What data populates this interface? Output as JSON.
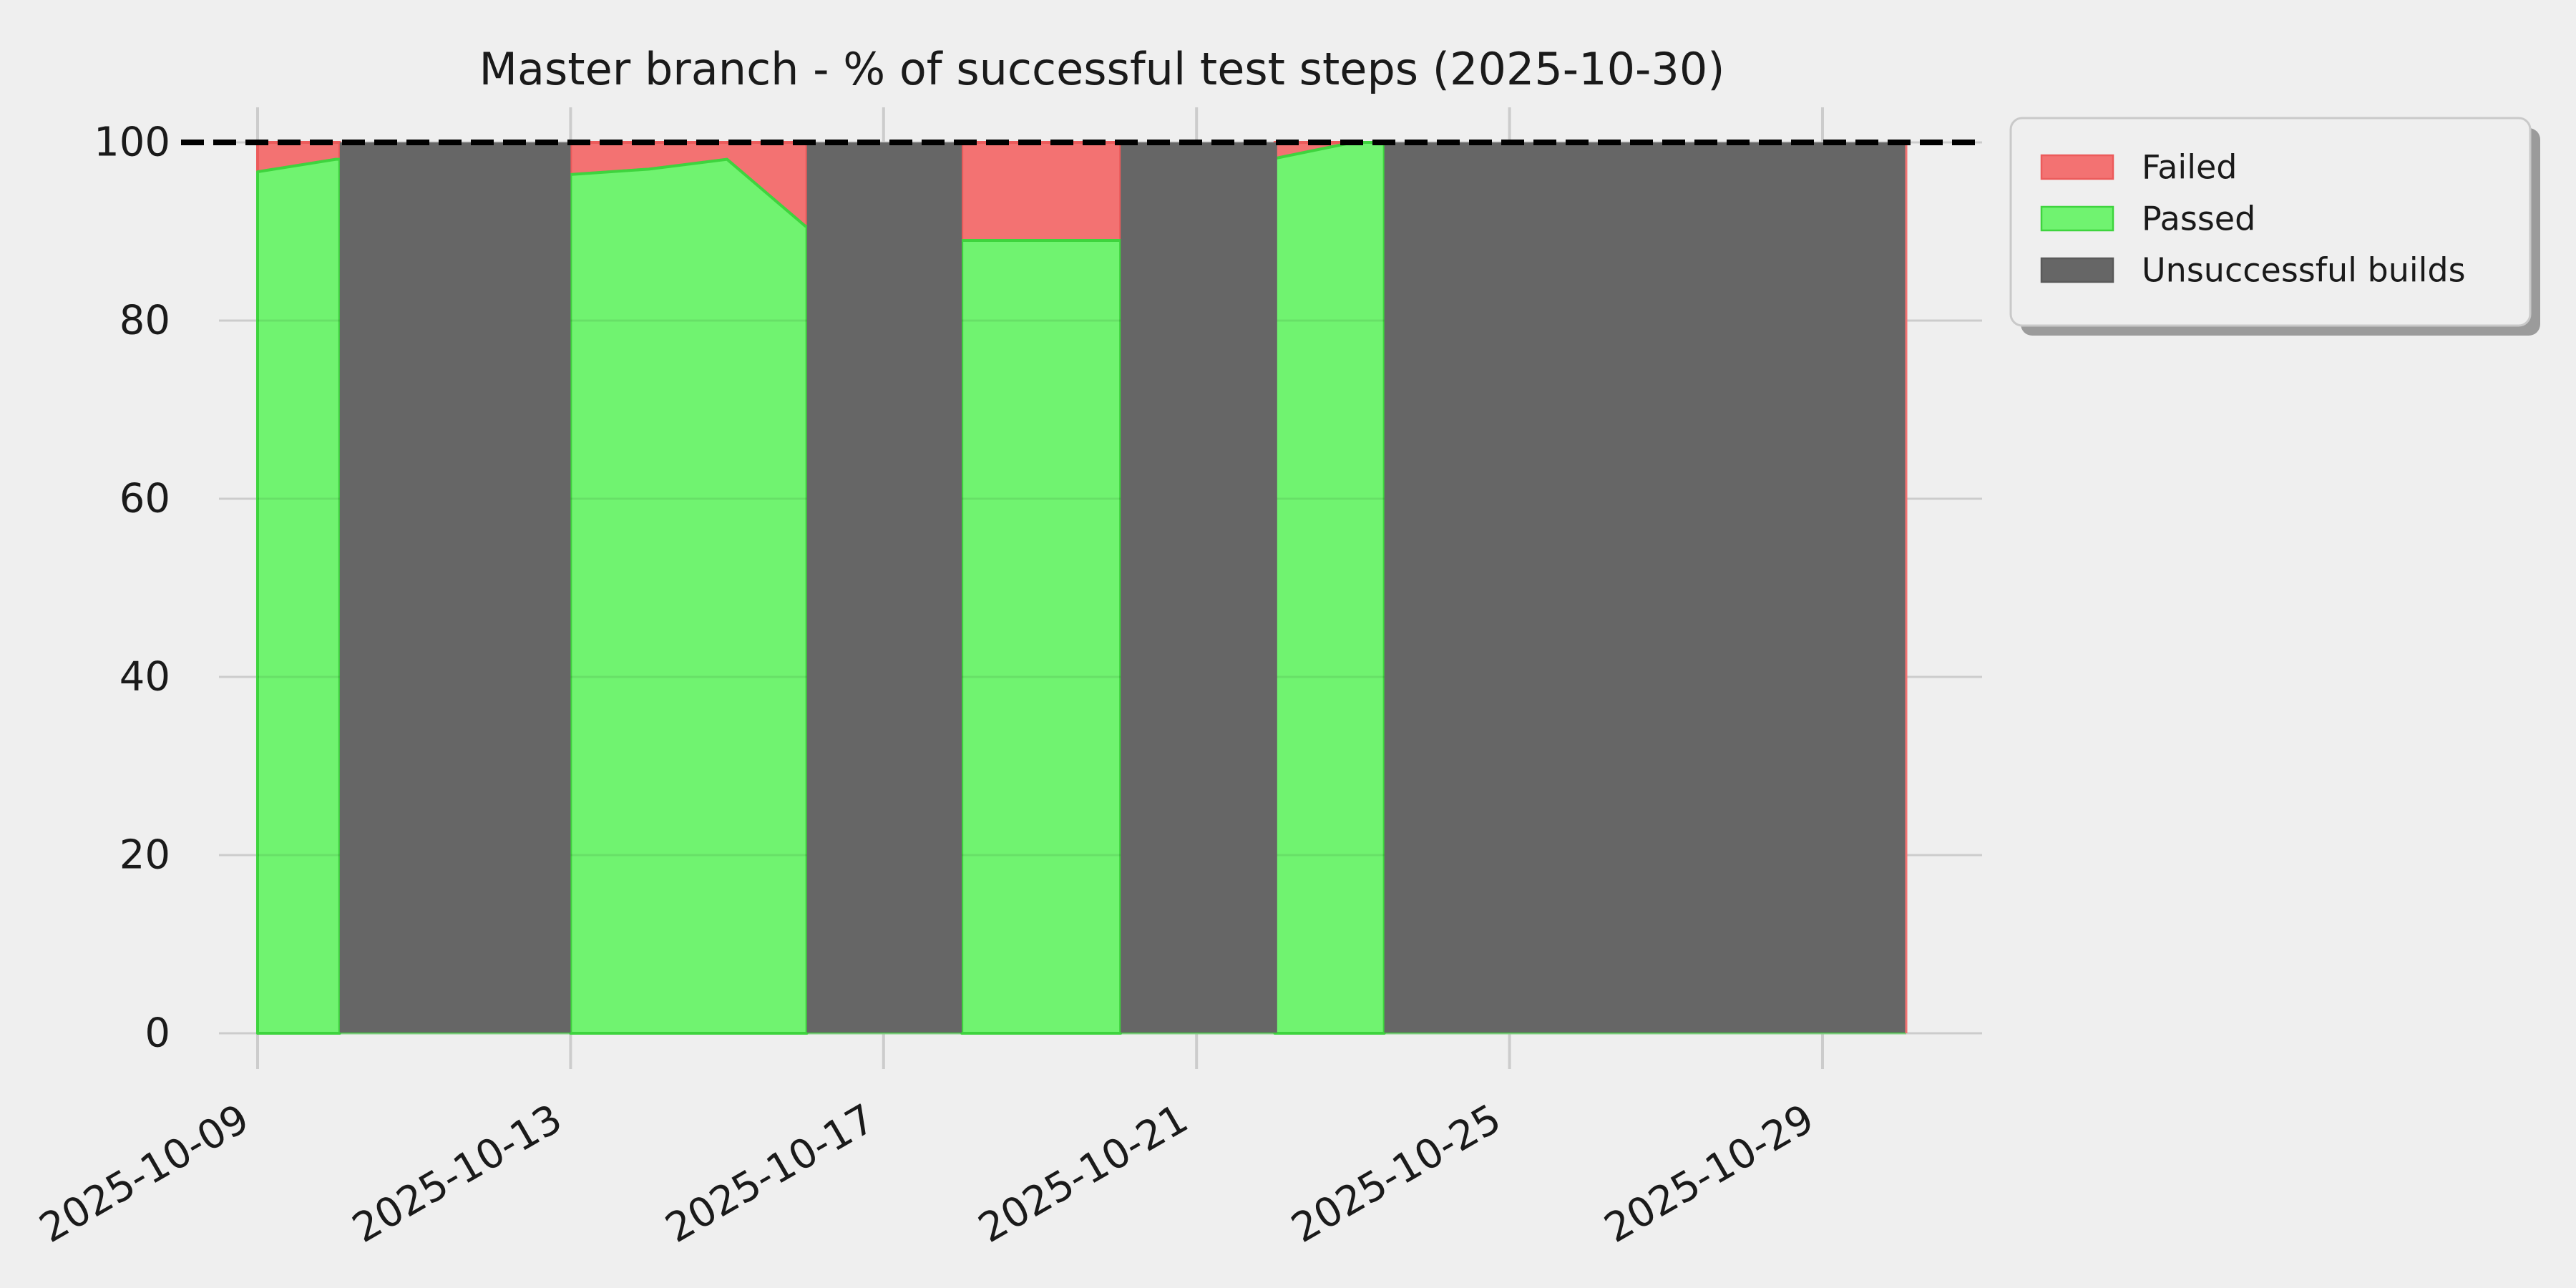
{
  "colors": {
    "background": "#efefef",
    "grid": "#cccccc",
    "grid_overlay_on_fill": "rgba(0,0,0,0.08)",
    "failed_fill": "#f37272",
    "failed_edge": "#ec5b5b",
    "passed_fill": "#70f370",
    "passed_edge": "#3ed43e",
    "unsuccessful_fill": "#666666",
    "reference_line": "#000000",
    "text": "#1a1a1a",
    "legend_background": "#efefef",
    "legend_border": "#c9c9c9",
    "legend_shadow": "#9b9b9b"
  },
  "chart_data": {
    "type": "area",
    "subtype": "stacked-percentage-area-with-gap-mask",
    "title": "Master branch - % of successful test steps (2025-10-30)",
    "xlabel": "",
    "ylabel": "",
    "ylim": [
      0,
      104
    ],
    "yticks": [
      "0",
      "20",
      "40",
      "60",
      "80",
      "100"
    ],
    "ytick_values": [
      0,
      20,
      40,
      60,
      80,
      100
    ],
    "xticks": [
      "2025-10-09",
      "2025-10-13",
      "2025-10-17",
      "2025-10-21",
      "2025-10-25",
      "2025-10-29"
    ],
    "xtick_days": [
      0,
      4,
      8,
      12,
      16,
      20
    ],
    "x_start_date": "2025-10-09",
    "x_end_date": "2025-10-30",
    "x_end_day": 21.07,
    "grid": true,
    "legend_position": "upper right, outside plot",
    "reference_line": {
      "y": 100,
      "style": "dashed",
      "color": "#000000"
    },
    "legend": [
      {
        "label": "Failed",
        "color": "#f37272",
        "edge": "#ec5b5b"
      },
      {
        "label": "Passed",
        "color": "#70f370",
        "edge": "#3ed43e"
      },
      {
        "label": "Unsuccessful builds",
        "color": "#666666",
        "edge": "#5a5a5a"
      }
    ],
    "series": [
      {
        "name": "Passed",
        "role": "lower stacked band (0 to passed%)"
      },
      {
        "name": "Failed",
        "role": "upper stacked band (passed% to 100)"
      },
      {
        "name": "Unsuccessful builds",
        "role": "full-height mask over gap periods"
      }
    ],
    "segments": [
      {
        "start_date": "2025-10-09",
        "end_date": "2025-10-10",
        "end_day_extension": 1.05,
        "points": [
          {
            "date": "2025-10-09",
            "day": 0,
            "passed": 96.7,
            "failed": 3.3
          },
          {
            "date": "2025-10-10",
            "day": 1,
            "passed": 98.1,
            "failed": 1.9
          }
        ]
      },
      {
        "start_date": "2025-10-13",
        "end_date": "2025-10-16",
        "end_day_extension": 7.02,
        "points": [
          {
            "date": "2025-10-13",
            "day": 4,
            "passed": 96.4,
            "failed": 3.6
          },
          {
            "date": "2025-10-14",
            "day": 5,
            "passed": 97.0,
            "failed": 3.0
          },
          {
            "date": "2025-10-15",
            "day": 6,
            "passed": 98.1,
            "failed": 1.9
          },
          {
            "date": "2025-10-16",
            "day": 7,
            "passed": 90.6,
            "failed": 9.4
          }
        ]
      },
      {
        "start_date": "2025-10-18",
        "end_date": "2025-10-20",
        "end_day_extension": 11.03,
        "points": [
          {
            "date": "2025-10-18",
            "day": 9,
            "passed": 89.0,
            "failed": 11.0
          },
          {
            "date": "2025-10-19",
            "day": 10,
            "passed": 89.0,
            "failed": 11.0
          },
          {
            "date": "2025-10-20",
            "day": 11,
            "passed": 89.0,
            "failed": 11.0
          }
        ]
      },
      {
        "start_date": "2025-10-22",
        "end_date": "2025-10-23",
        "end_day_extension": 14.4,
        "points": [
          {
            "date": "2025-10-22",
            "day": 13,
            "passed": 98.2,
            "failed": 1.8
          },
          {
            "date": "2025-10-23",
            "day": 14,
            "passed": 100.0,
            "failed": 0.0
          }
        ]
      }
    ],
    "unsuccessful_build_regions": [
      {
        "from_date": "2025-10-10",
        "to_date": "2025-10-13",
        "from_day": 1.05,
        "to_day": 4.0,
        "value": 100
      },
      {
        "from_date": "2025-10-16",
        "to_date": "2025-10-18",
        "from_day": 7.02,
        "to_day": 9.0,
        "value": 100
      },
      {
        "from_date": "2025-10-20",
        "to_date": "2025-10-22",
        "from_day": 11.03,
        "to_day": 13.03,
        "value": 100
      },
      {
        "from_date": "2025-10-23",
        "to_date": "2025-10-30",
        "from_day": 14.4,
        "to_day": 21.07,
        "value": 100
      }
    ]
  }
}
